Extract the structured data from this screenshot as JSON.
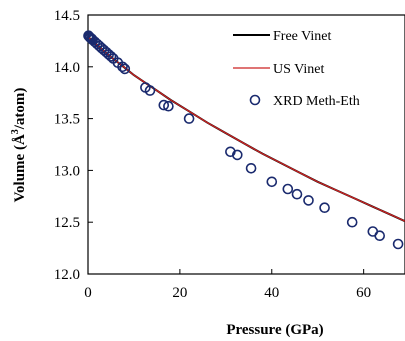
{
  "chart_data": {
    "type": "scatter",
    "xlabel": "Pressure (GPa)",
    "ylabel": "Volume (Å³/atom)",
    "ylabel_parts": {
      "main": "Volume (Å",
      "sup": "3",
      "tail": "/atom)"
    },
    "xlim": [
      0,
      69
    ],
    "ylim": [
      12.0,
      14.5
    ],
    "x_ticks": [
      0,
      20,
      40,
      60
    ],
    "y_ticks": [
      12.0,
      12.5,
      13.0,
      13.5,
      14.0,
      14.5
    ],
    "x_tick_labels": [
      "0",
      "20",
      "40",
      "60"
    ],
    "y_tick_labels": [
      "12.0",
      "12.5",
      "13.0",
      "13.5",
      "14.0",
      "14.5"
    ],
    "grid": false,
    "legend_position": "top-right",
    "series": [
      {
        "name": "Free Vinet",
        "kind": "line",
        "color": "#000000",
        "x": [
          0,
          2,
          4,
          6,
          8,
          10,
          12,
          15,
          18,
          22,
          26,
          30,
          34,
          38,
          42,
          46,
          50,
          54,
          58,
          62,
          66,
          69
        ],
        "y": [
          14.29,
          14.21,
          14.13,
          14.06,
          13.99,
          13.92,
          13.86,
          13.77,
          13.68,
          13.57,
          13.46,
          13.36,
          13.26,
          13.16,
          13.07,
          12.98,
          12.89,
          12.81,
          12.73,
          12.65,
          12.57,
          12.51
        ]
      },
      {
        "name": "US Vinet",
        "kind": "line",
        "color": "#cc2222",
        "x": [
          0,
          2,
          4,
          6,
          8,
          10,
          12,
          15,
          18,
          22,
          26,
          30,
          34,
          38,
          42,
          46,
          50,
          54,
          58,
          62,
          66,
          69
        ],
        "y": [
          14.29,
          14.21,
          14.13,
          14.06,
          13.99,
          13.92,
          13.86,
          13.77,
          13.68,
          13.57,
          13.46,
          13.36,
          13.26,
          13.16,
          13.07,
          12.98,
          12.89,
          12.81,
          12.73,
          12.65,
          12.57,
          12.51
        ]
      },
      {
        "name": "XRD Meth-Eth",
        "kind": "scatter",
        "color": "#1a2a6e",
        "x": [
          0.1,
          0.3,
          0.5,
          0.8,
          1.0,
          1.5,
          2.0,
          2.5,
          3.0,
          3.5,
          4.0,
          4.5,
          5.0,
          5.5,
          6.5,
          7.5,
          8.0,
          12.5,
          13.5,
          16.5,
          17.5,
          22.0,
          31.0,
          32.5,
          35.5,
          40.0,
          43.5,
          45.5,
          48.0,
          51.5,
          57.5,
          62.0,
          63.5,
          67.5
        ],
        "y": [
          14.3,
          14.29,
          14.28,
          14.27,
          14.26,
          14.24,
          14.22,
          14.2,
          14.18,
          14.16,
          14.14,
          14.12,
          14.1,
          14.08,
          14.04,
          14.0,
          13.98,
          13.8,
          13.77,
          13.63,
          13.62,
          13.5,
          13.18,
          13.15,
          13.02,
          12.89,
          12.82,
          12.77,
          12.71,
          12.64,
          12.5,
          12.41,
          12.37,
          12.29
        ]
      }
    ]
  }
}
